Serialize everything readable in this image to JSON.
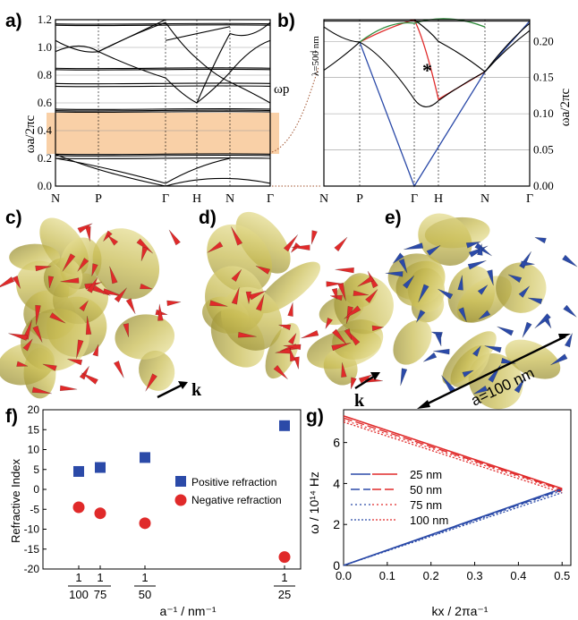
{
  "panels": {
    "a": {
      "label": "a)",
      "ylabel": "ωa/2πc",
      "yticks": [
        "0.0",
        "0.2",
        "0.4",
        "0.6",
        "0.8",
        "1.0",
        "1.2"
      ],
      "xticks": [
        "N",
        "P",
        "Γ",
        "H",
        "N",
        "Γ"
      ],
      "plasma_label": "ωp"
    },
    "b": {
      "label": "b)",
      "ylabel": "ωa/2πc",
      "yticks": [
        "0.00",
        "0.05",
        "0.10",
        "0.15",
        "0.20"
      ],
      "xticks": [
        "N",
        "P",
        "Γ",
        "H",
        "N",
        "Γ"
      ],
      "wavelength_label": "λ=500 nm",
      "star_label": "*"
    },
    "c": {
      "label": "c)"
    },
    "d": {
      "label": "d)",
      "k_label": "k"
    },
    "e": {
      "label": "e)",
      "k_label": "k",
      "scale_label": "a=100 nm"
    },
    "f": {
      "label": "f)",
      "ylabel": "Refractive Index",
      "xlabel": "a⁻¹ / nm⁻¹",
      "yticks": [
        "20",
        "15",
        "10",
        "5",
        "0",
        "-5",
        "-10",
        "-15",
        "-20"
      ],
      "xtick_denominators": [
        "100",
        "75",
        "50",
        "25"
      ],
      "xtick_numerator": "1",
      "legend": [
        "Positive refraction",
        "Negative refraction"
      ]
    },
    "g": {
      "label": "g)",
      "ylabel": "ω / 10¹⁴ Hz",
      "xlabel": "kx / 2πa⁻¹",
      "yticks": [
        "0",
        "2",
        "4",
        "6"
      ],
      "xticks": [
        "0.0",
        "0.1",
        "0.2",
        "0.3",
        "0.4",
        "0.5"
      ],
      "legend": [
        "25 nm",
        "50 nm",
        "75 nm",
        "100 nm"
      ]
    }
  },
  "colors": {
    "positive": "#2b4aa8",
    "negative": "#e02a2a",
    "green": "#2e8b3a",
    "band": "#f8c898",
    "gold": "#d8cc60"
  },
  "chart_data": [
    {
      "type": "scatter",
      "panel": "f",
      "xlabel": "a⁻¹ / nm⁻¹",
      "ylabel": "Refractive Index",
      "ylim": [
        -20,
        20
      ],
      "series": [
        {
          "name": "Positive refraction",
          "x": [
            0.01,
            0.01333,
            0.02,
            0.04
          ],
          "y": [
            4.5,
            5.5,
            8,
            16
          ]
        },
        {
          "name": "Negative refraction",
          "x": [
            0.01,
            0.01333,
            0.02,
            0.04
          ],
          "y": [
            -4.5,
            -6,
            -8.5,
            -17
          ]
        }
      ]
    },
    {
      "type": "line",
      "panel": "g",
      "xlabel": "kx / 2πa⁻¹",
      "ylabel": "ω / 10¹⁴ Hz",
      "xlim": [
        0,
        0.5
      ],
      "ylim": [
        0,
        7.5
      ],
      "series": [
        {
          "name": "25 nm",
          "band": "positive",
          "x": [
            0,
            0.5
          ],
          "y": [
            0,
            3.75
          ]
        },
        {
          "name": "25 nm",
          "band": "negative",
          "x": [
            0,
            0.5
          ],
          "y": [
            7.3,
            3.75
          ]
        },
        {
          "name": "50 nm",
          "band": "positive",
          "x": [
            0,
            0.5
          ],
          "y": [
            0,
            3.7
          ]
        },
        {
          "name": "50 nm",
          "band": "negative",
          "x": [
            0,
            0.5
          ],
          "y": [
            7.2,
            3.7
          ]
        },
        {
          "name": "75 nm",
          "band": "positive",
          "x": [
            0,
            0.5
          ],
          "y": [
            0,
            3.65
          ]
        },
        {
          "name": "75 nm",
          "band": "negative",
          "x": [
            0,
            0.5
          ],
          "y": [
            7.1,
            3.65
          ]
        },
        {
          "name": "100 nm",
          "band": "positive",
          "x": [
            0,
            0.5
          ],
          "y": [
            0,
            3.55
          ]
        },
        {
          "name": "100 nm",
          "band": "negative",
          "x": [
            0,
            0.5
          ],
          "y": [
            7.0,
            3.55
          ]
        }
      ]
    }
  ]
}
